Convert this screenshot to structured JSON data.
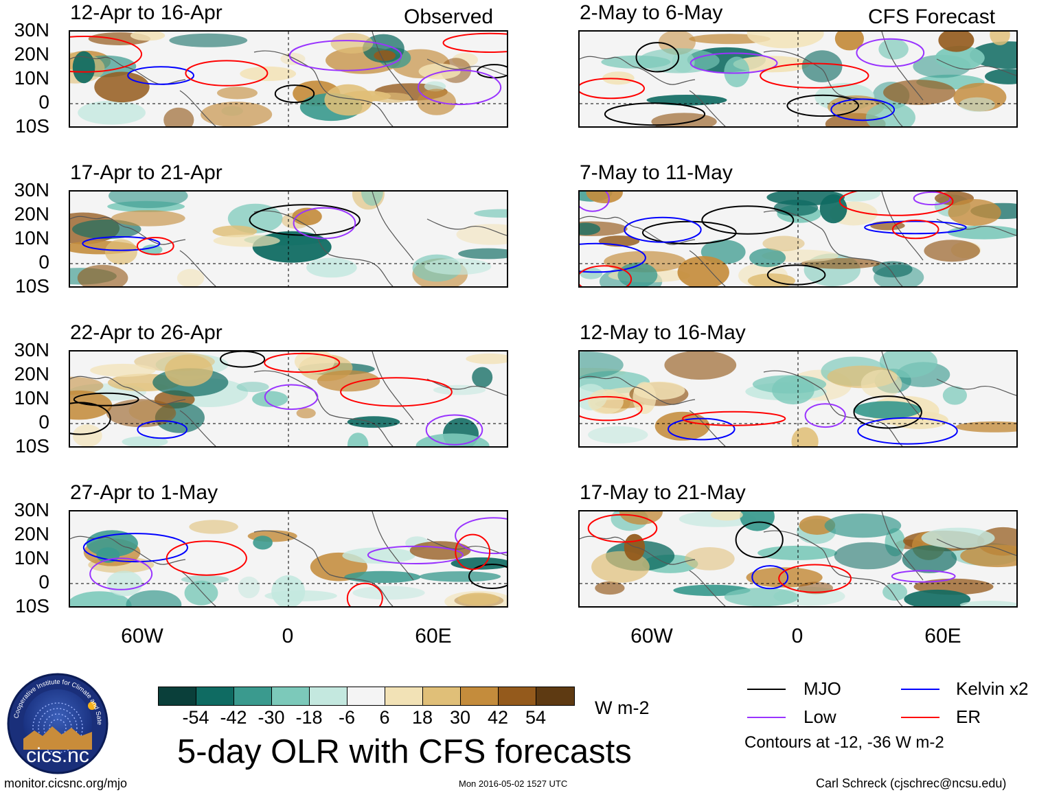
{
  "header": {
    "left_label": "Observed",
    "right_label": "CFS Forecast"
  },
  "panels_left": [
    {
      "title": "12-Apr to 16-Apr"
    },
    {
      "title": "17-Apr to 21-Apr"
    },
    {
      "title": "22-Apr to 26-Apr"
    },
    {
      "title": "27-Apr to 1-May"
    }
  ],
  "panels_right": [
    {
      "title": "2-May to 6-May"
    },
    {
      "title": "7-May to 11-May"
    },
    {
      "title": "12-May to 16-May"
    },
    {
      "title": "17-May to 21-May"
    }
  ],
  "axes": {
    "y_labels": [
      "30N",
      "20N",
      "10N",
      "0",
      "10S"
    ],
    "x_labels": [
      "60W",
      "0",
      "60E"
    ]
  },
  "colorbar": {
    "colors": [
      "#0a3f3a",
      "#0f6b62",
      "#3a9a8e",
      "#7cc9ba",
      "#c4e8df",
      "#f4f4f4",
      "#f2e2b6",
      "#e0bf78",
      "#c48c3c",
      "#945a1c",
      "#5e3a12"
    ],
    "ticks": [
      "-54",
      "-42",
      "-30",
      "-18",
      "-6",
      "6",
      "18",
      "30",
      "42",
      "54"
    ],
    "units": "W m-2"
  },
  "title": "5-day OLR with CFS forecasts",
  "legend": {
    "items": [
      {
        "label": "MJO",
        "color": "#000000"
      },
      {
        "label": "Kelvin x2",
        "color": "#0000ff"
      },
      {
        "label": "Low",
        "color": "#9933ff"
      },
      {
        "label": "ER",
        "color": "#ff0000"
      }
    ],
    "note": "Contours at -12, -36 W m-2"
  },
  "logo": {
    "text": "cics.nc",
    "ring_text": "Cooperative Institute for Climate and Satellites"
  },
  "footer": {
    "url": "monitor.cicsnc.org/mjo",
    "timestamp": "Mon 2016-05-02 1527 UTC",
    "credit": "Carl Schreck (cjschrec@ncsu.edu)"
  }
}
